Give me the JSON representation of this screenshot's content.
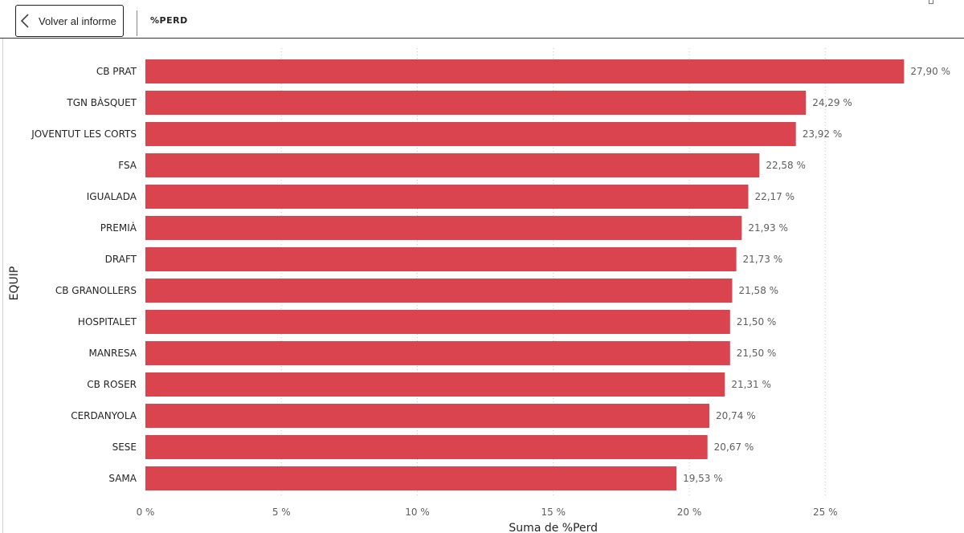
{
  "header": {
    "back_label": "Volver al informe",
    "page_title": "%PERD"
  },
  "icons": {
    "back": "chevron-left-icon"
  },
  "colors": {
    "bar": "#d9444e",
    "gridline": "#c8c8c8"
  },
  "chart_data": {
    "type": "bar",
    "orientation": "horizontal",
    "categories": [
      "CB PRAT",
      "TGN BÀSQUET",
      "JOVENTUT LES CORTS",
      "FSA",
      "IGUALADA",
      "PREMIÀ",
      "DRAFT",
      "CB GRANOLLERS",
      "HOSPITALET",
      "MANRESA",
      "CB ROSER",
      "CERDANYOLA",
      "SESE",
      "SAMA"
    ],
    "values": [
      27.9,
      24.29,
      23.92,
      22.58,
      22.17,
      21.93,
      21.73,
      21.58,
      21.5,
      21.5,
      21.31,
      20.74,
      20.67,
      19.53
    ],
    "data_labels": [
      "27,90 %",
      "24,29 %",
      "23,92 %",
      "22,58 %",
      "22,17 %",
      "21,93 %",
      "21,73 %",
      "21,58 %",
      "21,50 %",
      "21,50 %",
      "21,31 %",
      "20,74 %",
      "20,67 %",
      "19,53 %"
    ],
    "xlabel": "Suma de %Perd",
    "ylabel": "EQUIP",
    "xlim": [
      0,
      28
    ],
    "xticks": [
      0,
      5,
      10,
      15,
      20,
      25
    ],
    "xtick_labels": [
      "0 %",
      "5 %",
      "10 %",
      "15 %",
      "20 %",
      "25 %"
    ],
    "grid": true
  }
}
